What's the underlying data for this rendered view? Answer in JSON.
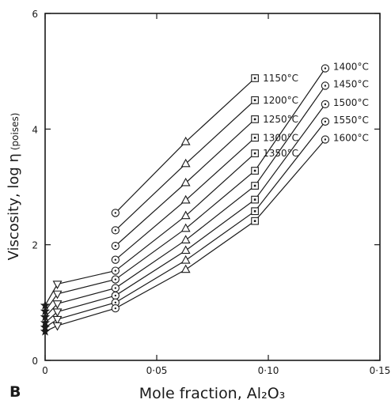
{
  "panel_label": "B",
  "chart_data": {
    "type": "line",
    "xlabel": "Mole fraction, Al₂O₃",
    "ylabel": "Viscosity, log η",
    "ylabel_unit": "(poises)",
    "xlim": [
      0,
      0.15
    ],
    "ylim": [
      0,
      6
    ],
    "xticks": [
      0,
      0.05,
      0.1,
      0.15
    ],
    "xtick_labels": [
      "0",
      "0·05",
      "0·10",
      "0·15"
    ],
    "yticks": [
      0,
      2,
      4,
      6
    ],
    "ytick_labels": [
      "0",
      "2",
      "4",
      "6"
    ],
    "grid": false,
    "legend": "none",
    "marker_groups": [
      {
        "x": 0,
        "marker": "star"
      },
      {
        "x": 0.0055,
        "marker": "triangle-down"
      },
      {
        "x": 0.0315,
        "marker": "circle"
      },
      {
        "x": 0.063,
        "marker": "triangle-up"
      },
      {
        "x": 0.094,
        "marker": "square"
      },
      {
        "x": 0.1255,
        "marker": "circle"
      }
    ],
    "series": [
      {
        "name": "1150°C",
        "x": [
          0.0315,
          0.063,
          0.094
        ],
        "values": [
          2.55,
          3.78,
          4.88
        ]
      },
      {
        "name": "1200°C",
        "x": [
          0.0315,
          0.063,
          0.094
        ],
        "values": [
          2.25,
          3.4,
          4.5
        ]
      },
      {
        "name": "1250°C",
        "x": [
          0.0315,
          0.063,
          0.094
        ],
        "values": [
          1.98,
          3.07,
          4.17
        ]
      },
      {
        "name": "1300°C",
        "x": [
          0.0315,
          0.063,
          0.094
        ],
        "values": [
          1.74,
          2.77,
          3.85
        ]
      },
      {
        "name": "1350°C",
        "x": [
          0,
          0.0055,
          0.0315,
          0.063,
          0.094
        ],
        "values": [
          0.95,
          1.32,
          1.55,
          2.5,
          3.58
        ]
      },
      {
        "name": "1400°C",
        "x": [
          0,
          0.0055,
          0.0315,
          0.063,
          0.094,
          0.1255
        ],
        "values": [
          0.85,
          1.15,
          1.4,
          2.28,
          3.28,
          5.05
        ]
      },
      {
        "name": "1450°C",
        "x": [
          0,
          0.0055,
          0.0315,
          0.063,
          0.094,
          0.1255
        ],
        "values": [
          0.75,
          0.98,
          1.25,
          2.08,
          3.02,
          4.75
        ]
      },
      {
        "name": "1500°C",
        "x": [
          0,
          0.0055,
          0.0315,
          0.063,
          0.094,
          0.1255
        ],
        "values": [
          0.65,
          0.84,
          1.12,
          1.9,
          2.78,
          4.43
        ]
      },
      {
        "name": "1550°C",
        "x": [
          0,
          0.0055,
          0.0315,
          0.063,
          0.094,
          0.1255
        ],
        "values": [
          0.57,
          0.71,
          1.0,
          1.73,
          2.58,
          4.13
        ]
      },
      {
        "name": "1600°C",
        "x": [
          0,
          0.0055,
          0.0315,
          0.063,
          0.094,
          0.1255
        ],
        "values": [
          0.5,
          0.6,
          0.9,
          1.57,
          2.41,
          3.82
        ]
      }
    ]
  }
}
